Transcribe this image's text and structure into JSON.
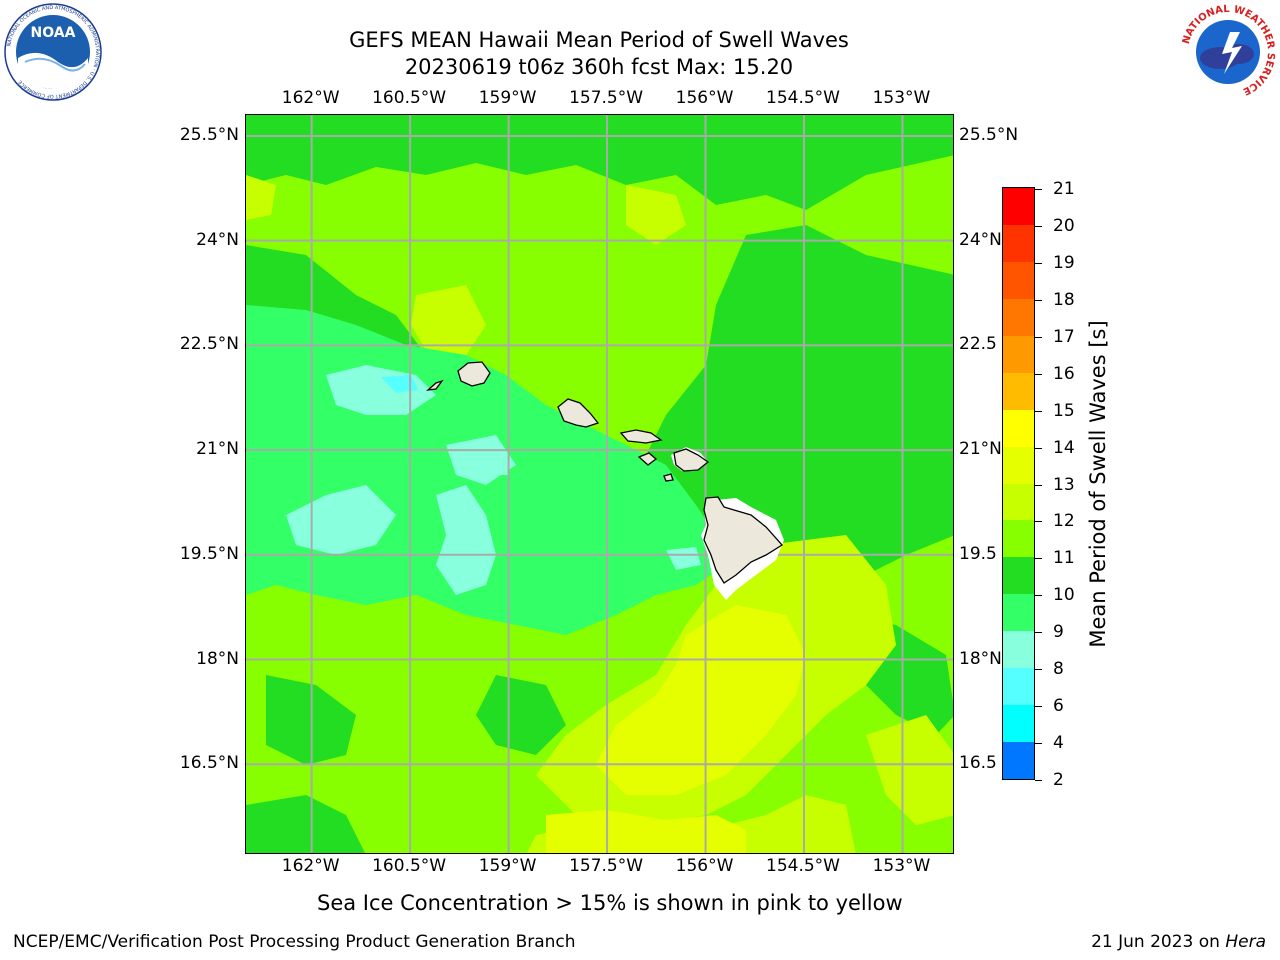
{
  "header": {
    "title_line1": "GEFS MEAN Hawaii Mean Period of Swell Waves",
    "title_line2": "20230619 t06z 360h fcst   Max: 15.20"
  },
  "logos": {
    "left": "noaa-logo",
    "left_text": "NOAA",
    "left_ring_text": "NATIONAL OCEANIC AND ATMOSPHERIC ADMINISTRATION · U.S. DEPARTMENT OF COMMERCE",
    "right": "nws-logo",
    "right_ring_text": "NATIONAL WEATHER SERVICE"
  },
  "map": {
    "lon_ticks": [
      "162°W",
      "160.5°W",
      "159°W",
      "157.5°W",
      "156°W",
      "154.5°W",
      "153°W"
    ],
    "lat_ticks": [
      "25.5°N",
      "24°N",
      "22.5°N",
      "21°N",
      "19.5°N",
      "18°N",
      "16.5°N"
    ],
    "lat_ticks_right": [
      "25.5°N",
      "24°N",
      "22.5",
      "21°N",
      "19.5",
      "18°N",
      "16.5"
    ],
    "lon_values": [
      -162,
      -160.5,
      -159,
      -157.5,
      -156,
      -154.5,
      -153
    ],
    "lat_values": [
      25.5,
      24,
      22.5,
      21,
      19.5,
      18,
      16.5
    ],
    "extent": {
      "lon_min": -163,
      "lon_max": -152.2,
      "lat_min": 15.2,
      "lat_max": 25.8
    },
    "grid": true,
    "land_color": "#ece9dc",
    "grid_color": "#aaaaaa"
  },
  "colorbar": {
    "title": "Mean Period of Swell Waves [s]",
    "levels": [
      "21",
      "20",
      "19",
      "18",
      "17",
      "16",
      "15",
      "14",
      "13",
      "12",
      "11",
      "10",
      "9",
      "8",
      "6",
      "4",
      "2"
    ],
    "colors": [
      "#ff0000",
      "#ff3300",
      "#ff5500",
      "#ff7700",
      "#ff9900",
      "#ffbb00",
      "#ffff00",
      "#e6ff00",
      "#c8ff00",
      "#88ff00",
      "#22dd22",
      "#33ff66",
      "#88ffdd",
      "#55ffff",
      "#00ffff",
      "#0077ff",
      "#0000ff"
    ]
  },
  "footer": {
    "note": "Sea Ice Concentration > 15% is shown in pink to yellow",
    "left": "NCEP/EMC/Verification Post Processing Product Generation Branch",
    "right_prefix": "21 Jun 2023 on ",
    "right_machine": "Hera"
  }
}
